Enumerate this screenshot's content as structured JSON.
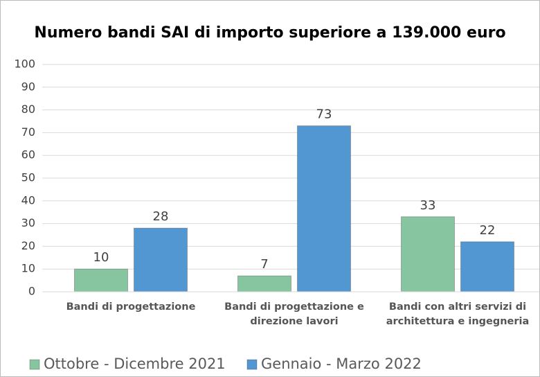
{
  "chart_data": {
    "type": "bar",
    "title": "Numero bandi SAI di importo superiore a 139.000 euro",
    "categories": [
      "Bandi di progettazione",
      "Bandi di progettazione e direzione lavori",
      "Bandi con altri servizi di architettura e ingegneria"
    ],
    "series": [
      {
        "name": "Ottobre - Dicembre 2021",
        "color": "#86c59f",
        "values": [
          10,
          7,
          33
        ]
      },
      {
        "name": "Gennaio - Marzo 2022",
        "color": "#5296d2",
        "values": [
          28,
          73,
          22
        ]
      }
    ],
    "ylim": [
      0,
      100
    ],
    "yticks": [
      0,
      10,
      20,
      30,
      40,
      50,
      60,
      70,
      80,
      90,
      100
    ],
    "grid": true,
    "legend": "bottom"
  }
}
